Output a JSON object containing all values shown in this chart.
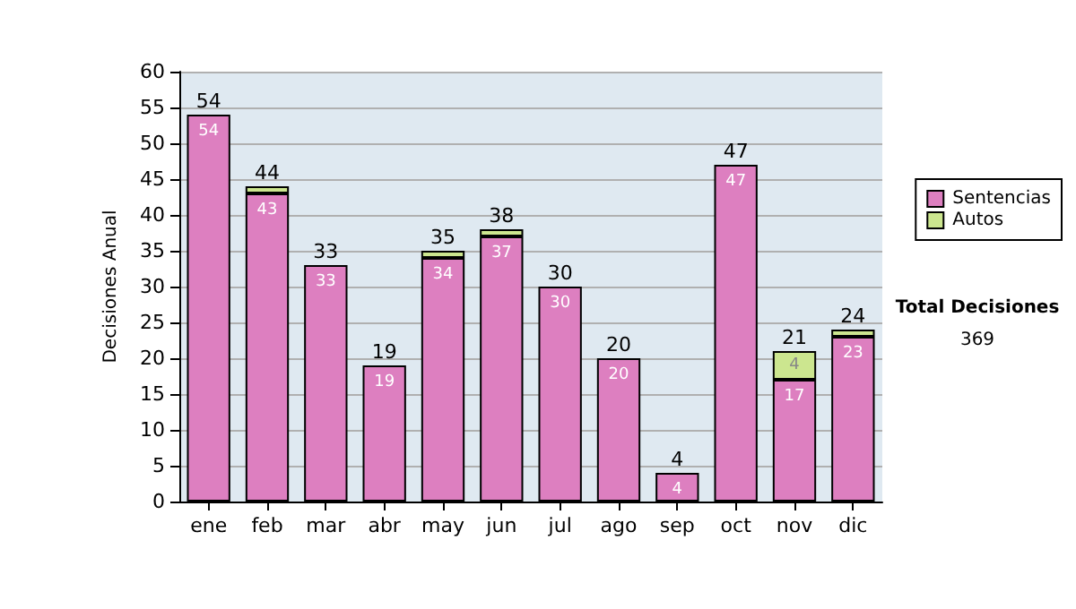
{
  "chart_data": {
    "type": "bar",
    "stacked": true,
    "ylabel": "Decisiones Anual",
    "categories": [
      "ene",
      "feb",
      "mar",
      "abr",
      "may",
      "jun",
      "jul",
      "ago",
      "sep",
      "oct",
      "nov",
      "dic"
    ],
    "series": [
      {
        "name": "Sentencias",
        "color": "#dd7fc0",
        "values": [
          54,
          43,
          33,
          19,
          34,
          37,
          30,
          20,
          4,
          47,
          17,
          23
        ],
        "value_labels": [
          "54",
          "43",
          "33",
          "19",
          "34",
          "37",
          "30",
          "20",
          "4",
          "47",
          "17",
          "23"
        ]
      },
      {
        "name": "Autos",
        "color": "#cce68f",
        "values": [
          0,
          1,
          0,
          0,
          1,
          1,
          0,
          0,
          0,
          0,
          4,
          1
        ],
        "value_labels": [
          null,
          null,
          null,
          null,
          null,
          null,
          null,
          null,
          null,
          null,
          "4",
          null
        ]
      }
    ],
    "totals": [
      "54",
      "44",
      "33",
      "19",
      "35",
      "38",
      "30",
      "20",
      "4",
      "47",
      "21",
      "24"
    ],
    "ylim": [
      0,
      60
    ],
    "yticks": [
      0,
      5,
      10,
      15,
      20,
      25,
      30,
      35,
      40,
      45,
      50,
      55,
      60
    ],
    "grid": "y",
    "legend": "right",
    "annotations": [
      "Total Decisiones",
      "369"
    ]
  }
}
